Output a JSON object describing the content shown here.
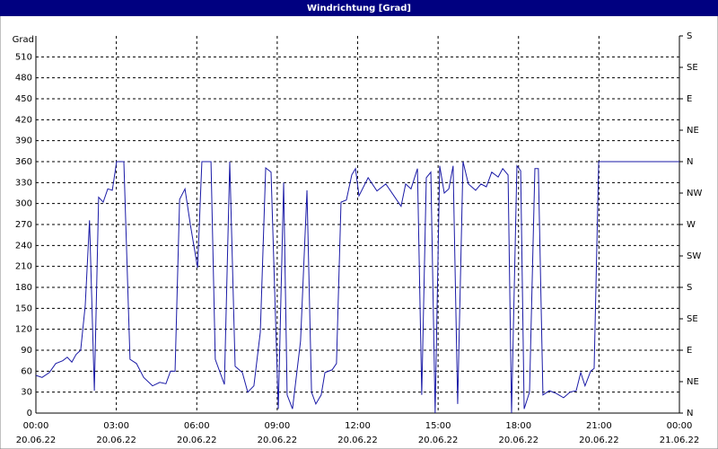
{
  "chart_data": {
    "type": "line",
    "title": "Windrichtung [Grad]",
    "y_label": "Grad",
    "series": [
      {
        "name": "Windrichtung",
        "color": "#1a1aa6",
        "x": [
          0,
          0.23,
          0.5,
          0.74,
          1.0,
          1.17,
          1.34,
          1.5,
          1.67,
          1.84,
          2.0,
          2.18,
          2.34,
          2.51,
          2.68,
          2.85,
          3.01,
          3.28,
          3.51,
          3.75,
          4.02,
          4.35,
          4.62,
          4.85,
          5.02,
          5.19,
          5.36,
          5.56,
          5.76,
          6.03,
          6.19,
          6.53,
          6.69,
          7.03,
          7.23,
          7.43,
          7.7,
          7.9,
          8.13,
          8.37,
          8.57,
          8.77,
          9.04,
          9.24,
          9.37,
          9.57,
          9.87,
          10.11,
          10.28,
          10.44,
          10.64,
          10.78,
          11.05,
          11.21,
          11.38,
          11.58,
          11.78,
          11.92,
          12.05,
          12.39,
          12.72,
          13.05,
          13.39,
          13.62,
          13.79,
          13.99,
          14.23,
          14.39,
          14.56,
          14.73,
          14.89,
          15.06,
          15.23,
          15.4,
          15.56,
          15.73,
          15.93,
          16.13,
          16.4,
          16.6,
          16.8,
          17.0,
          17.24,
          17.41,
          17.61,
          17.74,
          17.94,
          18.08,
          18.21,
          18.41,
          18.61,
          18.74,
          18.91,
          19.15,
          19.41,
          19.68,
          19.92,
          20.15,
          20.32,
          20.48,
          20.69,
          20.82,
          20.99,
          24
        ],
        "values": [
          54,
          51,
          58,
          71,
          75,
          80,
          73,
          84,
          90,
          154,
          276,
          32,
          309,
          302,
          321,
          319,
          360,
          360,
          77,
          71,
          51,
          39,
          44,
          42,
          60,
          60,
          306,
          321,
          270,
          208,
          360,
          360,
          77,
          41,
          360,
          67,
          58,
          30,
          39,
          116,
          351,
          345,
          6,
          330,
          26,
          6,
          103,
          319,
          30,
          13,
          26,
          58,
          62,
          71,
          302,
          305,
          341,
          350,
          311,
          337,
          318,
          328,
          309,
          296,
          328,
          321,
          350,
          26,
          337,
          345,
          0,
          354,
          315,
          321,
          354,
          13,
          360,
          328,
          319,
          328,
          324,
          345,
          338,
          350,
          341,
          0,
          354,
          347,
          6,
          30,
          350,
          350,
          26,
          32,
          28,
          22,
          30,
          32,
          58,
          39,
          60,
          64,
          360,
          360
        ]
      }
    ],
    "xlim": [
      0,
      24
    ],
    "xticks": [
      {
        "value": 0,
        "label": "00:00"
      },
      {
        "value": 3,
        "label": "03:00"
      },
      {
        "value": 6,
        "label": "06:00"
      },
      {
        "value": 9,
        "label": "09:00"
      },
      {
        "value": 12,
        "label": "12:00"
      },
      {
        "value": 15,
        "label": "15:00"
      },
      {
        "value": 18,
        "label": "18:00"
      },
      {
        "value": 21,
        "label": "21:00"
      },
      {
        "value": 24,
        "label": "00:00"
      }
    ],
    "xtick_dates": [
      "20.06.22",
      "20.06.22",
      "20.06.22",
      "20.06.22",
      "20.06.22",
      "20.06.22",
      "20.06.22",
      "20.06.22",
      "21.06.22"
    ],
    "ylim": [
      0,
      540
    ],
    "yticks": [
      0,
      30,
      60,
      90,
      120,
      150,
      180,
      210,
      240,
      270,
      300,
      330,
      360,
      390,
      420,
      450,
      480,
      510
    ],
    "y2lim": [
      0,
      540
    ],
    "y2ticks": [
      {
        "value": 0,
        "label": "N"
      },
      {
        "value": 45,
        "label": "NE"
      },
      {
        "value": 90,
        "label": "E"
      },
      {
        "value": 135,
        "label": "SE"
      },
      {
        "value": 180,
        "label": "S"
      },
      {
        "value": 225,
        "label": "SW"
      },
      {
        "value": 270,
        "label": "W"
      },
      {
        "value": 315,
        "label": "NW"
      },
      {
        "value": 360,
        "label": "N"
      },
      {
        "value": 405,
        "label": "NE"
      },
      {
        "value": 450,
        "label": "E"
      },
      {
        "value": 495,
        "label": "SE"
      },
      {
        "value": 540,
        "label": "S"
      }
    ],
    "grid": true
  }
}
